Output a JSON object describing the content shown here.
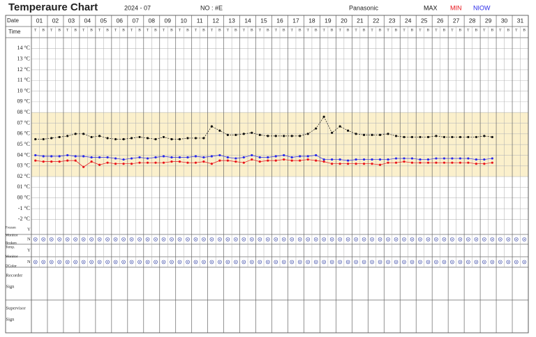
{
  "chart_data": {
    "type": "line",
    "title": "Temperaure Chart",
    "period": "2024 - 07",
    "number": "NO : #E",
    "brand": "Panasonic",
    "row_labels": {
      "date": "Date",
      "time": "Time"
    },
    "time_slots": [
      "T",
      "B"
    ],
    "categories": [
      "01",
      "02",
      "03",
      "04",
      "05",
      "06",
      "07",
      "08",
      "09",
      "10",
      "11",
      "12",
      "13",
      "14",
      "15",
      "16",
      "17",
      "18",
      "19",
      "20",
      "21",
      "22",
      "23",
      "24",
      "25",
      "26",
      "27",
      "28",
      "29",
      "30",
      "31"
    ],
    "ylim": [
      -2.5,
      15
    ],
    "yticks": [
      {
        "value": 14,
        "label": "14 °C"
      },
      {
        "value": 13,
        "label": "13 °C"
      },
      {
        "value": 12,
        "label": "12 °C"
      },
      {
        "value": 11,
        "label": "11 °C"
      },
      {
        "value": 10,
        "label": "10 °C"
      },
      {
        "value": 9,
        "label": "09 °C"
      },
      {
        "value": 8,
        "label": "08 °C"
      },
      {
        "value": 7,
        "label": "07 °C"
      },
      {
        "value": 6,
        "label": "06 °C"
      },
      {
        "value": 5,
        "label": "05 °C"
      },
      {
        "value": 4,
        "label": "04 °C"
      },
      {
        "value": 3,
        "label": "03 °C"
      },
      {
        "value": 2,
        "label": "02 °C"
      },
      {
        "value": 1,
        "label": "01 °C"
      },
      {
        "value": 0,
        "label": "00 °C"
      },
      {
        "value": -1,
        "label": "-1 °C"
      },
      {
        "value": -2,
        "label": "-2 °C"
      }
    ],
    "grid": true,
    "band": {
      "range": [
        2,
        8
      ],
      "color": "#fbf0cc"
    },
    "series": [
      {
        "name": "MAX",
        "color": "#111111",
        "values": [
          [
            5.5,
            5.5
          ],
          [
            5.6,
            5.7
          ],
          [
            5.8,
            6.0
          ],
          [
            6.0,
            5.7
          ],
          [
            5.8,
            5.6
          ],
          [
            5.5,
            5.5
          ],
          [
            5.6,
            5.7
          ],
          [
            5.6,
            5.5
          ],
          [
            5.7,
            5.5
          ],
          [
            5.5,
            5.6
          ],
          [
            5.6,
            5.6
          ],
          [
            6.7,
            6.3
          ],
          [
            5.9,
            5.9
          ],
          [
            6.0,
            6.1
          ],
          [
            5.9,
            5.8
          ],
          [
            5.8,
            5.8
          ],
          [
            5.8,
            5.8
          ],
          [
            6.0,
            6.5
          ],
          [
            7.6,
            6.1
          ],
          [
            6.7,
            6.3
          ],
          [
            6.0,
            5.9
          ],
          [
            5.9,
            5.9
          ],
          [
            6.0,
            5.8
          ],
          [
            5.7,
            5.7
          ],
          [
            5.7,
            5.7
          ],
          [
            5.8,
            5.7
          ],
          [
            5.7,
            5.7
          ],
          [
            5.7,
            5.7
          ],
          [
            5.8,
            5.7
          ],
          [
            null,
            null
          ],
          [
            null,
            null
          ]
        ]
      },
      {
        "name": "MIN",
        "color": "#e8141b",
        "values": [
          [
            3.5,
            3.4
          ],
          [
            3.4,
            3.4
          ],
          [
            3.5,
            3.5
          ],
          [
            2.9,
            3.4
          ],
          [
            3.1,
            3.3
          ],
          [
            3.2,
            3.2
          ],
          [
            3.2,
            3.3
          ],
          [
            3.3,
            3.3
          ],
          [
            3.3,
            3.4
          ],
          [
            3.4,
            3.3
          ],
          [
            3.3,
            3.4
          ],
          [
            3.2,
            3.5
          ],
          [
            3.5,
            3.4
          ],
          [
            3.3,
            3.6
          ],
          [
            3.4,
            3.5
          ],
          [
            3.5,
            3.6
          ],
          [
            3.5,
            3.5
          ],
          [
            3.6,
            3.5
          ],
          [
            3.4,
            3.2
          ],
          [
            3.2,
            3.2
          ],
          [
            3.2,
            3.2
          ],
          [
            3.2,
            3.1
          ],
          [
            3.3,
            3.3
          ],
          [
            3.4,
            3.3
          ],
          [
            3.3,
            3.3
          ],
          [
            3.3,
            3.3
          ],
          [
            3.3,
            3.3
          ],
          [
            3.3,
            3.2
          ],
          [
            3.2,
            3.3
          ],
          [
            null,
            null
          ],
          [
            null,
            null
          ]
        ]
      },
      {
        "name": "NIOW",
        "color": "#2a2ae8",
        "values": [
          [
            4.0,
            3.9
          ],
          [
            3.9,
            3.9
          ],
          [
            4.0,
            3.9
          ],
          [
            3.9,
            3.8
          ],
          [
            3.8,
            3.8
          ],
          [
            3.7,
            3.6
          ],
          [
            3.7,
            3.8
          ],
          [
            3.7,
            3.8
          ],
          [
            3.9,
            3.8
          ],
          [
            3.8,
            3.8
          ],
          [
            3.9,
            3.8
          ],
          [
            3.9,
            4.0
          ],
          [
            3.8,
            3.7
          ],
          [
            3.8,
            4.0
          ],
          [
            3.8,
            3.8
          ],
          [
            3.9,
            4.0
          ],
          [
            3.8,
            3.9
          ],
          [
            3.9,
            4.0
          ],
          [
            3.6,
            3.6
          ],
          [
            3.6,
            3.5
          ],
          [
            3.6,
            3.6
          ],
          [
            3.6,
            3.6
          ],
          [
            3.6,
            3.7
          ],
          [
            3.7,
            3.7
          ],
          [
            3.6,
            3.6
          ],
          [
            3.7,
            3.7
          ],
          [
            3.7,
            3.7
          ],
          [
            3.7,
            3.6
          ],
          [
            3.6,
            3.7
          ],
          [
            null,
            null
          ],
          [
            null,
            null
          ]
        ]
      }
    ],
    "monitor_rows": [
      {
        "label": [
          "Frozen",
          "Monitor",
          "Broken"
        ],
        "options": [
          "Y",
          "N"
        ]
      },
      {
        "label": [
          "Temp.",
          "Monitor",
          "DColor"
        ],
        "options": [
          "Y",
          "N"
        ]
      }
    ],
    "sign_rows": [
      [
        "Recorder",
        "Sign"
      ],
      [
        "Supervisor",
        "Sign"
      ]
    ]
  }
}
